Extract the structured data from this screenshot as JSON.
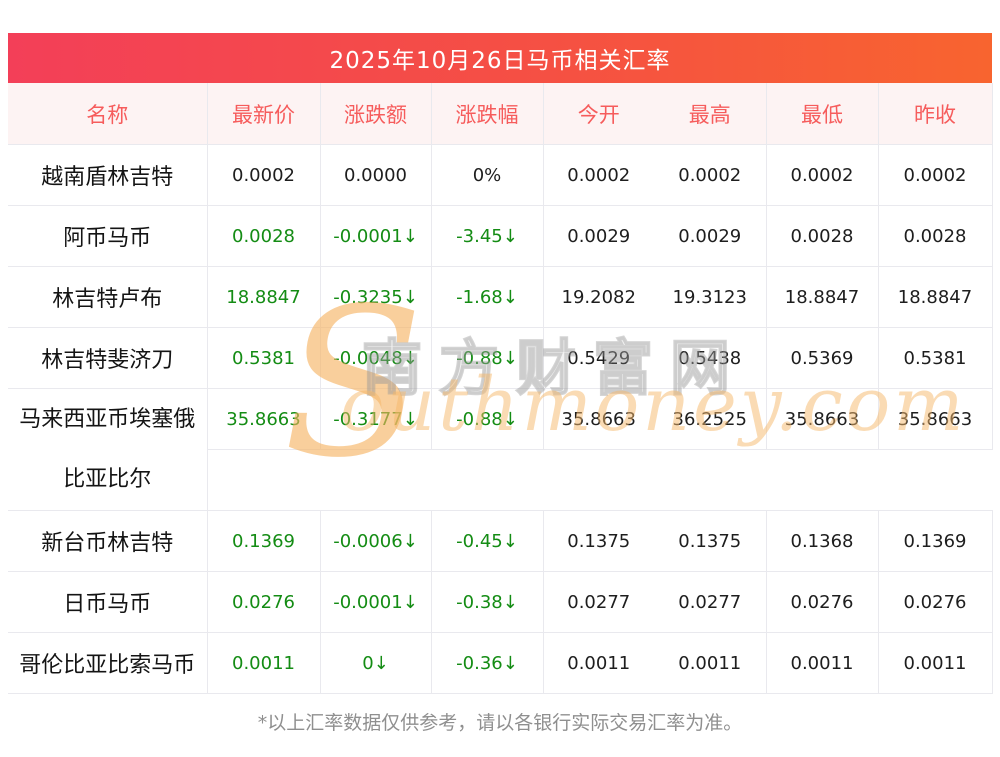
{
  "chart_data": {
    "type": "table",
    "title": "2025年10月26日马币相关汇率",
    "columns": [
      "名称",
      "最新价",
      "涨跌额",
      "涨跌幅",
      "今开",
      "最高",
      "最低",
      "昨收"
    ],
    "rows": [
      {
        "name": "越南盾林吉特",
        "latest": "0.0002",
        "change": "0.0000",
        "pct": "0%",
        "open": "0.0002",
        "high": "0.0002",
        "low": "0.0002",
        "close": "0.0002",
        "trend": "flat"
      },
      {
        "name": "阿币马币",
        "latest": "0.0028",
        "change": "-0.0001↓",
        "pct": "-3.45↓",
        "open": "0.0029",
        "high": "0.0029",
        "low": "0.0028",
        "close": "0.0028",
        "trend": "down"
      },
      {
        "name": "林吉特卢布",
        "latest": "18.8847",
        "change": "-0.3235↓",
        "pct": "-1.68↓",
        "open": "19.2082",
        "high": "19.3123",
        "low": "18.8847",
        "close": "18.8847",
        "trend": "down"
      },
      {
        "name": "林吉特斐济刀",
        "latest": "0.5381",
        "change": "-0.0048↓",
        "pct": "-0.88↓",
        "open": "0.5429",
        "high": "0.5438",
        "low": "0.5369",
        "close": "0.5381",
        "trend": "down"
      },
      {
        "name": "马来西亚币埃塞俄比亚比尔",
        "latest": "35.8663",
        "change": "-0.3177↓",
        "pct": "-0.88↓",
        "open": "35.8663",
        "high": "36.2525",
        "low": "35.8663",
        "close": "35.8663",
        "trend": "down"
      },
      {
        "name": "新台币林吉特",
        "latest": "0.1369",
        "change": "-0.0006↓",
        "pct": "-0.45↓",
        "open": "0.1375",
        "high": "0.1375",
        "low": "0.1368",
        "close": "0.1369",
        "trend": "down"
      },
      {
        "name": "日币马币",
        "latest": "0.0276",
        "change": "-0.0001↓",
        "pct": "-0.38↓",
        "open": "0.0277",
        "high": "0.0277",
        "low": "0.0276",
        "close": "0.0276",
        "trend": "down"
      },
      {
        "name": "哥伦比亚比索马币",
        "latest": "0.0011",
        "change": "0↓",
        "pct": "-0.36↓",
        "open": "0.0011",
        "high": "0.0011",
        "low": "0.0011",
        "close": "0.0011",
        "trend": "down"
      }
    ],
    "layout": {
      "grid": true,
      "merged_header_area": "今开/最高 无分隔线",
      "down_color": "#148c14"
    }
  },
  "footnote": "*以上汇率数据仅供参考，请以各银行实际交易汇率为准。",
  "watermark": {
    "initial": "S",
    "site_name_cn": "南方财富网",
    "site_name_en_rest": "outhmoney.com"
  },
  "colors": {
    "title_gradient_start": "#f33f58",
    "title_gradient_end": "#f8642f",
    "header_bg": "#fdf3f3",
    "header_text": "#f65c5c",
    "grid_line": "#e9e9ee",
    "down_green": "#148c14",
    "body_text": "#1e1e1e",
    "footnote_text": "#8f8f8f",
    "watermark_gold": "#f6b260"
  }
}
